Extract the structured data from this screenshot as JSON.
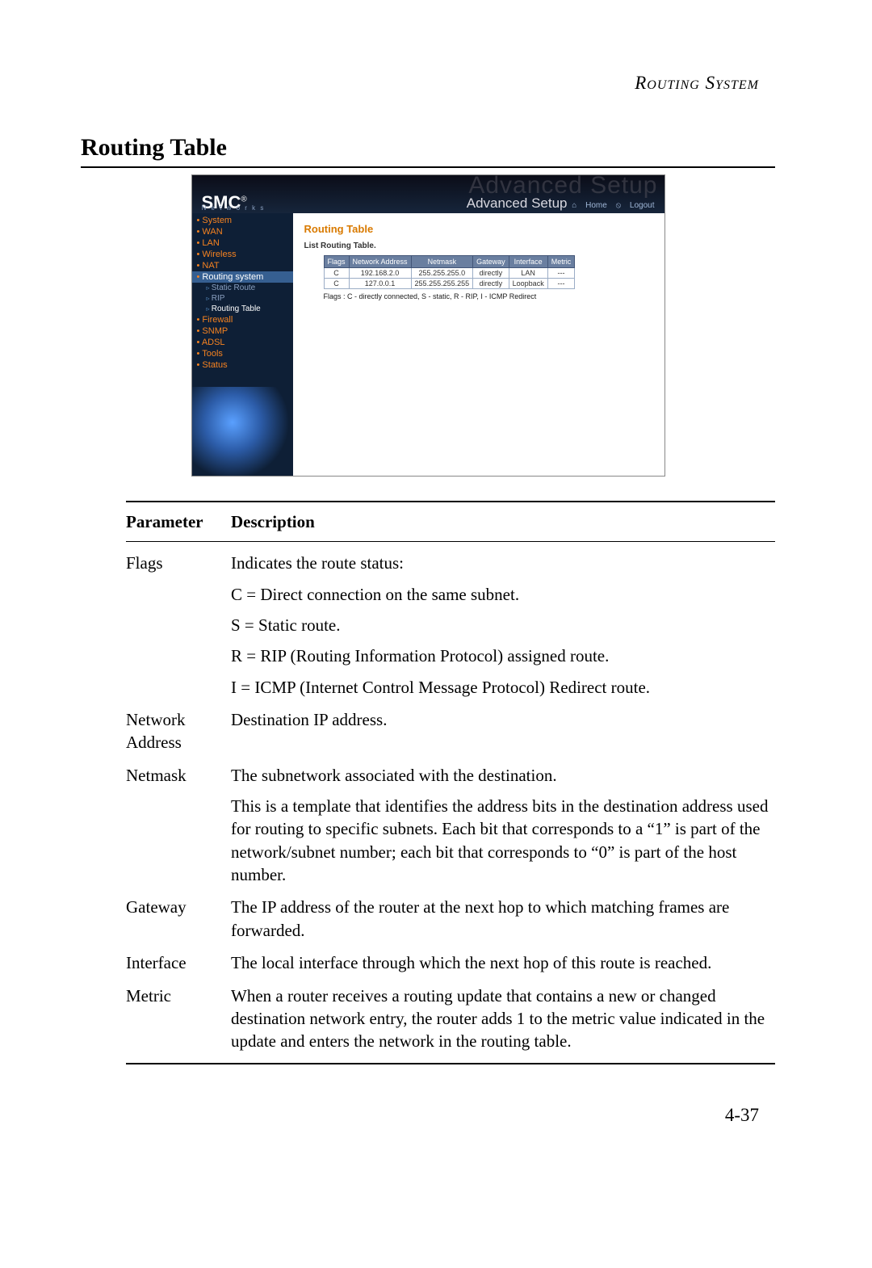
{
  "running_head": "Routing System",
  "section_title": "Routing Table",
  "page_number": "4-37",
  "screenshot": {
    "brand": "SMC",
    "brand_reg": "®",
    "brand_sub": "N e t w o r k s",
    "ghost": "Advanced Setup",
    "title": "Advanced Setup",
    "home_link": "Home",
    "logout_link": "Logout",
    "sidebar": {
      "items": [
        {
          "label": "System",
          "active": false
        },
        {
          "label": "WAN",
          "active": false
        },
        {
          "label": "LAN",
          "active": false
        },
        {
          "label": "Wireless",
          "active": false
        },
        {
          "label": "NAT",
          "active": false
        },
        {
          "label": "Routing system",
          "active": true,
          "subs": [
            {
              "label": "Static Route",
              "current": false
            },
            {
              "label": "RIP",
              "current": false
            },
            {
              "label": "Routing Table",
              "current": true
            }
          ]
        },
        {
          "label": "Firewall",
          "active": false
        },
        {
          "label": "SNMP",
          "active": false
        },
        {
          "label": "ADSL",
          "active": false
        },
        {
          "label": "Tools",
          "active": false
        },
        {
          "label": "Status",
          "active": false
        }
      ]
    },
    "content_title": "Routing Table",
    "content_sub": "List Routing Table.",
    "table": {
      "headers": [
        "Flags",
        "Network Address",
        "Netmask",
        "Gateway",
        "Interface",
        "Metric"
      ],
      "rows": [
        [
          "C",
          "192.168.2.0",
          "255.255.255.0",
          "directly",
          "LAN",
          "---"
        ],
        [
          "C",
          "127.0.0.1",
          "255.255.255.255",
          "directly",
          "Loopback",
          "---"
        ]
      ]
    },
    "flags_note": "Flags :   C - directly connected, S - static, R - RIP, I - ICMP Redirect"
  },
  "param_table": {
    "head_l": "Parameter",
    "head_r": "Description",
    "rows": [
      {
        "param": "Flags",
        "desc": [
          "Indicates the route status:",
          "C = Direct connection on the same subnet.",
          "S = Static route.",
          "R = RIP (Routing Information Protocol) assigned route.",
          "I = ICMP (Internet Control Message Protocol) Redirect route."
        ]
      },
      {
        "param": "Network Address",
        "desc": [
          "Destination IP address."
        ]
      },
      {
        "param": "Netmask",
        "desc": [
          "The subnetwork associated with the destination.",
          "This is a template that identifies the address bits in the destination address used for routing to specific subnets. Each bit that corresponds to a “1” is part of the network/subnet number; each bit that corresponds to “0” is part of the host number."
        ]
      },
      {
        "param": "Gateway",
        "desc": [
          "The IP address of the router at the next hop to which matching frames are forwarded."
        ]
      },
      {
        "param": "Interface",
        "desc": [
          "The local interface through which the next hop of this route is reached."
        ]
      },
      {
        "param": "Metric",
        "desc": [
          "When a router receives a routing update that contains a new or changed destination network entry, the router adds 1 to the metric value indicated in the update and enters the network in the routing table."
        ]
      }
    ]
  }
}
